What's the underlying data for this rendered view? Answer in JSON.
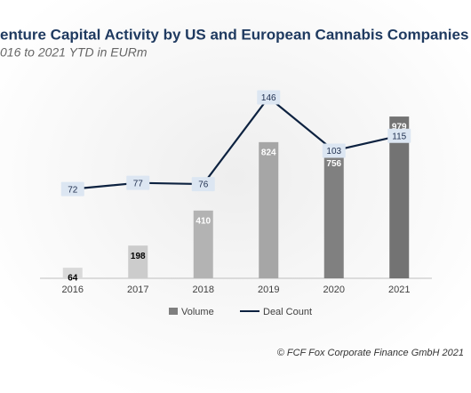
{
  "chart_data": {
    "type": "bar_line",
    "title": "enture Capital Activity by US and European Cannabis Companies",
    "subtitle": "016 to 2021 YTD in EURm",
    "categories": [
      "2016",
      "2017",
      "2018",
      "2019",
      "2020",
      "2021"
    ],
    "series": [
      {
        "name": "Volume",
        "type": "bar",
        "color": "#7f7f7f",
        "colors": [
          "#d9d9d9",
          "#cccccc",
          "#b3b3b3",
          "#a6a6a6",
          "#808080",
          "#737373"
        ],
        "values": [
          64,
          198,
          410,
          824,
          756,
          979
        ]
      },
      {
        "name": "Deal Count",
        "type": "line",
        "axis": "y2",
        "color": "#0d2240",
        "values": [
          72,
          77,
          76,
          146,
          103,
          115
        ]
      }
    ],
    "ylim": [
      0,
      1200
    ],
    "y2lim": [
      0,
      160
    ],
    "source": "© FCF Fox Corporate Finance GmbH 2021"
  }
}
